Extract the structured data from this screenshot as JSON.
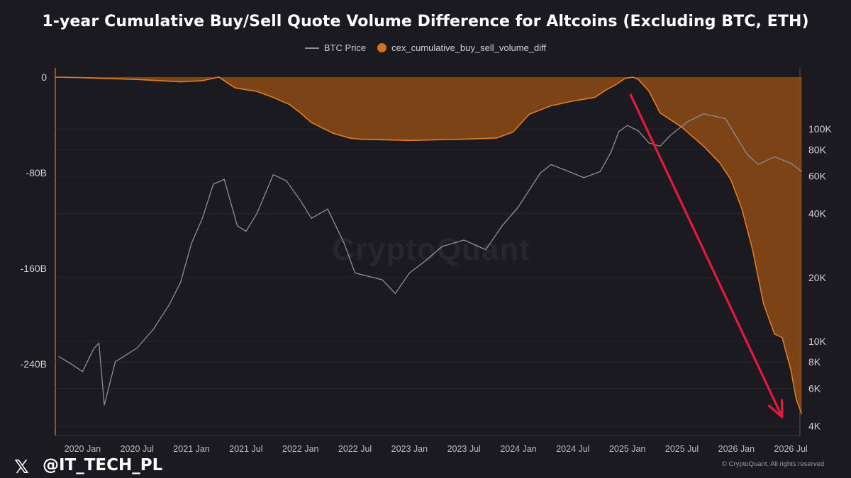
{
  "title": "1-year Cumulative Buy/Sell Quote Volume Difference for Altcoins (Excluding BTC, ETH)",
  "legend": [
    {
      "label": "BTC Price",
      "color": "#8e8e94"
    },
    {
      "label": "cex_cumulative_buy_sell_volume_diff",
      "color": "#d4711a"
    }
  ],
  "watermark": "CryptoQuant",
  "footer": {
    "social_icon": "x-logo-icon",
    "x_glyph": "𝕏",
    "handle": "@IT_TECH_PL",
    "copyright": "© CryptoQuant. All rights reserved"
  },
  "annotation": {
    "type": "arrow",
    "color": "#e8173f",
    "from": {
      "date": "2025.03",
      "value": 145000
    },
    "to": {
      "date": "2026.42",
      "value": 4400
    }
  },
  "chart_data": {
    "type": "area",
    "x_axis": {
      "ticks": [
        "2020 Jan",
        "2020 Jul",
        "2021 Jan",
        "2021 Jul",
        "2022 Jan",
        "2022 Jul",
        "2023 Jan",
        "2023 Jul",
        "2024 Jan",
        "2024 Jul",
        "2025 Jan",
        "2025 Jul",
        "2026 Jan",
        "2026 Jul"
      ],
      "range": [
        "2019 Oct",
        "2026 Aug"
      ]
    },
    "y_left": {
      "ticks": [
        "0",
        "-80B",
        "-160B",
        "-240B"
      ],
      "tick_values": [
        0,
        -80,
        -160,
        -240
      ],
      "unit": "B",
      "range": [
        -300,
        10
      ]
    },
    "y_right": {
      "scale": "log",
      "ticks": [
        "100K",
        "80K",
        "60K",
        "40K",
        "20K",
        "10K",
        "8K",
        "6K",
        "4K"
      ],
      "tick_values": [
        100000,
        80000,
        60000,
        40000,
        20000,
        10000,
        8000,
        6000,
        4000
      ],
      "range": [
        3600,
        200000
      ]
    },
    "series": [
      {
        "name": "cex_cumulative_buy_sell_volume_diff",
        "axis": "left",
        "color": "#d4711a",
        "x": [
          2019.75,
          2020.0,
          2020.5,
          2020.9,
          2021.1,
          2021.25,
          2021.4,
          2021.6,
          2021.75,
          2021.9,
          2022.0,
          2022.1,
          2022.3,
          2022.45,
          2022.55,
          2023.0,
          2023.5,
          2023.8,
          2023.95,
          2024.1,
          2024.3,
          2024.5,
          2024.7,
          2024.8,
          2024.9,
          2024.98,
          2025.05,
          2025.1,
          2025.2,
          2025.3,
          2025.5,
          2025.7,
          2025.85,
          2025.95,
          2026.05,
          2026.15,
          2026.25,
          2026.35,
          2026.42,
          2026.5,
          2026.55,
          2026.6
        ],
        "y": [
          0,
          -0.5,
          -2,
          -4,
          -3,
          0,
          -9,
          -12,
          -17,
          -23,
          -30,
          -38,
          -47,
          -51,
          -52,
          -53,
          -52,
          -51,
          -46,
          -31,
          -24,
          -20,
          -17,
          -11,
          -6,
          -1,
          0,
          -2,
          -12,
          -30,
          -42,
          -58,
          -72,
          -86,
          -110,
          -145,
          -190,
          -215,
          -218,
          -245,
          -270,
          -282
        ]
      },
      {
        "name": "BTC Price",
        "axis": "right",
        "color": "#8e8e94",
        "x": [
          2019.78,
          2019.9,
          2020.0,
          2020.1,
          2020.15,
          2020.2,
          2020.3,
          2020.5,
          2020.65,
          2020.8,
          2020.9,
          2021.0,
          2021.1,
          2021.2,
          2021.3,
          2021.42,
          2021.5,
          2021.6,
          2021.75,
          2021.87,
          2022.0,
          2022.1,
          2022.25,
          2022.4,
          2022.5,
          2022.75,
          2022.87,
          2023.0,
          2023.15,
          2023.3,
          2023.5,
          2023.7,
          2023.85,
          2024.0,
          2024.2,
          2024.3,
          2024.5,
          2024.6,
          2024.75,
          2024.85,
          2024.92,
          2025.0,
          2025.1,
          2025.2,
          2025.3,
          2025.4,
          2025.55,
          2025.7,
          2025.8,
          2025.9,
          2026.0,
          2026.1,
          2026.2,
          2026.35,
          2026.5,
          2026.6
        ],
        "y": [
          8500,
          7800,
          7200,
          9200,
          9800,
          5000,
          8000,
          9300,
          11400,
          15000,
          19000,
          29000,
          38000,
          55000,
          58000,
          35000,
          33000,
          40000,
          61000,
          57000,
          46000,
          38000,
          42000,
          29000,
          21000,
          19500,
          16800,
          21000,
          24000,
          28000,
          30000,
          27000,
          35000,
          43000,
          62000,
          68000,
          62000,
          59000,
          63000,
          78000,
          97000,
          104000,
          98000,
          86000,
          83000,
          94000,
          108000,
          118000,
          115000,
          112000,
          92000,
          76000,
          68000,
          74000,
          69000,
          63000
        ]
      }
    ]
  }
}
